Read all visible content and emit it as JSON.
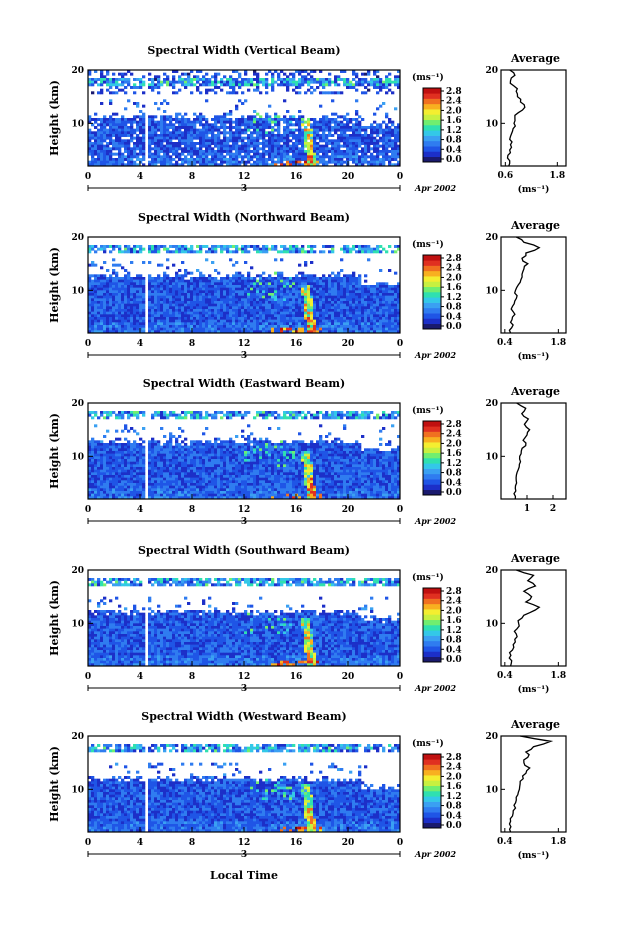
{
  "x_axis_label": "Local Time",
  "colors": [
    "#1a1a6e",
    "#1c2fc8",
    "#1f55e6",
    "#2f7cf0",
    "#3aa0f2",
    "#33c8e8",
    "#2fe0b0",
    "#70ee70",
    "#c8f040",
    "#f4ee30",
    "#f8b020",
    "#f07020",
    "#e03020",
    "#c01010"
  ],
  "chart_data": [
    {
      "type": "heatmap",
      "title": "Spectral Width (Vertical Beam)",
      "ylabel": "Height (km)",
      "xlabel": "Local Time",
      "x_ticks": [
        "0",
        "4",
        "8",
        "12",
        "16",
        "20",
        "0"
      ],
      "x_range": [
        0,
        24
      ],
      "y_ticks": [
        "20",
        "10"
      ],
      "y_range": [
        2,
        20
      ],
      "day_label": "3",
      "date_label": "Apr 2002",
      "colorbar": {
        "unit": "(ms⁻¹)",
        "ticks": [
          "2.8",
          "2.4",
          "2.0",
          "1.6",
          "1.2",
          "0.8",
          "0.4",
          "0.0"
        ]
      },
      "average": {
        "title": "Average",
        "xlabel": "(ms⁻¹)",
        "x_ticks": [
          "0.6",
          "1.8"
        ],
        "x_range": [
          0.5,
          2.0
        ],
        "heights": [
          2,
          3,
          4,
          5,
          6,
          7,
          8,
          9,
          10,
          11,
          12,
          13,
          14,
          15,
          16,
          17,
          18,
          19,
          20
        ],
        "values": [
          0.68,
          0.7,
          0.66,
          0.7,
          0.72,
          0.7,
          0.74,
          0.78,
          0.8,
          0.82,
          0.9,
          1.05,
          0.95,
          0.88,
          0.85,
          0.8,
          0.72,
          0.82,
          0.7
        ]
      }
    },
    {
      "type": "heatmap",
      "title": "Spectral Width (Northward Beam)",
      "ylabel": "Height (km)",
      "xlabel": "Local Time",
      "x_ticks": [
        "0",
        "4",
        "8",
        "12",
        "16",
        "20",
        "0"
      ],
      "x_range": [
        0,
        24
      ],
      "y_ticks": [
        "20",
        "10"
      ],
      "y_range": [
        2,
        20
      ],
      "day_label": "3",
      "date_label": "Apr 2002",
      "colorbar": {
        "unit": "(ms⁻¹)",
        "ticks": [
          "2.8",
          "2.4",
          "2.0",
          "1.6",
          "1.2",
          "0.8",
          "0.4",
          "0.0"
        ]
      },
      "average": {
        "title": "Average",
        "xlabel": "(ms⁻¹)",
        "x_ticks": [
          "0.4",
          "1.8"
        ],
        "x_range": [
          0.3,
          2.0
        ],
        "heights": [
          2,
          3,
          4,
          5,
          6,
          7,
          8,
          9,
          10,
          11,
          12,
          13,
          14,
          15,
          16,
          17,
          18,
          19,
          20
        ],
        "values": [
          0.55,
          0.58,
          0.55,
          0.6,
          0.62,
          0.6,
          0.66,
          0.72,
          0.68,
          0.75,
          0.82,
          0.85,
          0.9,
          1.0,
          0.85,
          0.95,
          1.3,
          0.9,
          0.7
        ]
      }
    },
    {
      "type": "heatmap",
      "title": "Spectral Width (Eastward Beam)",
      "ylabel": "Height (km)",
      "xlabel": "Local Time",
      "x_ticks": [
        "0",
        "4",
        "8",
        "12",
        "16",
        "20",
        "0"
      ],
      "x_range": [
        0,
        24
      ],
      "y_ticks": [
        "20",
        "10"
      ],
      "y_range": [
        2,
        20
      ],
      "day_label": "3",
      "date_label": "Apr 2002",
      "colorbar": {
        "unit": "(ms⁻¹)",
        "ticks": [
          "2.8",
          "2.4",
          "2.0",
          "1.6",
          "1.2",
          "0.8",
          "0.4",
          "0.0"
        ]
      },
      "average": {
        "title": "Average",
        "xlabel": "",
        "x_ticks": [
          "1",
          "2"
        ],
        "x_range": [
          0,
          2.5
        ],
        "heights": [
          2,
          3,
          4,
          5,
          6,
          7,
          8,
          9,
          10,
          11,
          12,
          13,
          14,
          15,
          16,
          17,
          18,
          19,
          20
        ],
        "values": [
          0.55,
          0.5,
          0.55,
          0.6,
          0.58,
          0.62,
          0.7,
          0.75,
          0.72,
          0.78,
          0.95,
          0.85,
          1.0,
          1.1,
          0.9,
          1.05,
          0.8,
          0.95,
          0.6
        ]
      }
    },
    {
      "type": "heatmap",
      "title": "Spectral Width (Southward Beam)",
      "ylabel": "Height (km)",
      "xlabel": "Local Time",
      "x_ticks": [
        "0",
        "4",
        "8",
        "12",
        "16",
        "20",
        "0"
      ],
      "x_range": [
        0,
        24
      ],
      "y_ticks": [
        "20",
        "10"
      ],
      "y_range": [
        2,
        20
      ],
      "day_label": "3",
      "date_label": "Apr 2002",
      "colorbar": {
        "unit": "(ms⁻¹)",
        "ticks": [
          "2.8",
          "2.4",
          "2.0",
          "1.6",
          "1.2",
          "0.8",
          "0.4",
          "0.0"
        ]
      },
      "average": {
        "title": "Average",
        "xlabel": "(ms⁻¹)",
        "x_ticks": [
          "0.4",
          "1.8"
        ],
        "x_range": [
          0.3,
          2.0
        ],
        "heights": [
          2,
          3,
          4,
          5,
          6,
          7,
          8,
          9,
          10,
          11,
          12,
          13,
          14,
          15,
          16,
          17,
          18,
          19,
          20
        ],
        "values": [
          0.55,
          0.58,
          0.56,
          0.6,
          0.62,
          0.66,
          0.7,
          0.72,
          0.76,
          0.85,
          1.05,
          1.3,
          0.95,
          1.1,
          0.9,
          1.2,
          1.0,
          1.15,
          0.7
        ]
      }
    },
    {
      "type": "heatmap",
      "title": "Spectral Width (Westward Beam)",
      "ylabel": "Height (km)",
      "xlabel": "Local Time",
      "x_ticks": [
        "0",
        "4",
        "8",
        "12",
        "16",
        "20",
        "0"
      ],
      "x_range": [
        0,
        24
      ],
      "y_ticks": [
        "20",
        "10"
      ],
      "y_range": [
        2,
        20
      ],
      "day_label": "3",
      "date_label": "Apr 2002",
      "colorbar": {
        "unit": "(ms⁻¹)",
        "ticks": [
          "2.8",
          "2.4",
          "2.0",
          "1.6",
          "1.2",
          "0.8",
          "0.4",
          "0.0"
        ]
      },
      "average": {
        "title": "Average",
        "xlabel": "(ms⁻¹)",
        "x_ticks": [
          "0.4",
          "1.8"
        ],
        "x_range": [
          0.3,
          2.0
        ],
        "heights": [
          2,
          3,
          4,
          5,
          6,
          7,
          8,
          9,
          10,
          11,
          12,
          13,
          14,
          15,
          16,
          17,
          18,
          19,
          20
        ],
        "values": [
          0.55,
          0.56,
          0.55,
          0.6,
          0.62,
          0.64,
          0.7,
          0.74,
          0.78,
          0.8,
          0.88,
          0.95,
          1.05,
          0.9,
          1.0,
          0.95,
          1.15,
          1.6,
          0.8
        ]
      }
    }
  ]
}
